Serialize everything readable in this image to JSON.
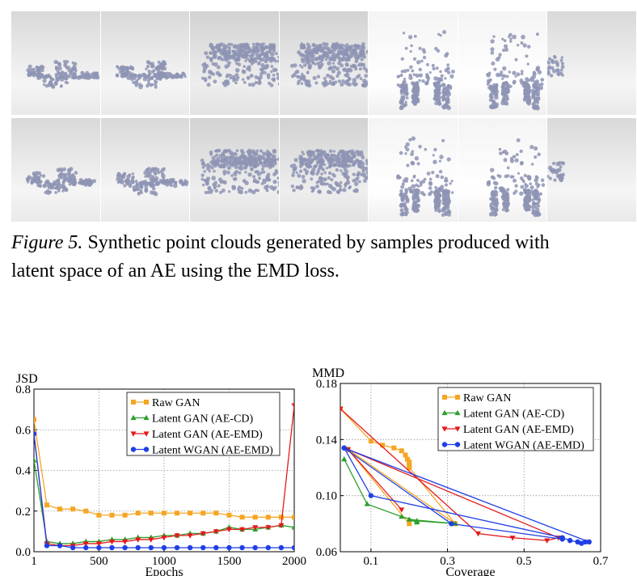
{
  "caption": {
    "figure_label": "Figure 5.",
    "line1": " Synthetic point clouds generated by samples produced with",
    "line2": "latent space of an AE using the EMD loss."
  },
  "renders": {
    "row1": [
      "airplane",
      "airplane",
      "car",
      "car",
      "chair",
      "chair",
      "partial"
    ],
    "row2": [
      "airplane",
      "airplane",
      "car",
      "car",
      "chair",
      "chair",
      "partial"
    ]
  },
  "colors": {
    "raw_gan": "#f5a623",
    "latent_gan_cd": "#2ca02c",
    "latent_gan_emd": "#e31a1c",
    "latent_wgan_emd": "#1f3fe6",
    "points": "#8e94b4"
  },
  "chart_data": [
    {
      "type": "line",
      "ylabel": "JSD",
      "xlabel": "Epochs",
      "xlim": [
        1,
        2000
      ],
      "ylim": [
        0.0,
        0.8
      ],
      "xticks": [
        1,
        500,
        1000,
        1500,
        2000
      ],
      "xtick_labels": [
        "1",
        "500",
        "1000",
        "1500",
        "2000"
      ],
      "yticks": [
        0.0,
        0.2,
        0.4,
        0.6,
        0.8
      ],
      "ytick_labels": [
        "0.0",
        "0.2",
        "0.4",
        "0.6",
        "0.8"
      ],
      "grid": true,
      "legend": "top-right",
      "series": [
        {
          "name": "Raw GAN",
          "marker": "square",
          "color": "#f5a623",
          "x": [
            1,
            100,
            200,
            300,
            400,
            500,
            600,
            700,
            800,
            900,
            1000,
            1100,
            1200,
            1300,
            1400,
            1500,
            1600,
            1700,
            1800,
            1900,
            2000
          ],
          "y": [
            0.65,
            0.23,
            0.21,
            0.21,
            0.2,
            0.18,
            0.18,
            0.18,
            0.19,
            0.19,
            0.19,
            0.19,
            0.19,
            0.19,
            0.19,
            0.18,
            0.17,
            0.17,
            0.17,
            0.17,
            0.17
          ]
        },
        {
          "name": "Latent GAN (AE-CD)",
          "marker": "triangle-up",
          "color": "#2ca02c",
          "x": [
            1,
            100,
            200,
            300,
            400,
            500,
            600,
            700,
            800,
            900,
            1000,
            1100,
            1200,
            1300,
            1400,
            1500,
            1600,
            1700,
            1800,
            1900,
            2000
          ],
          "y": [
            0.45,
            0.05,
            0.04,
            0.04,
            0.05,
            0.05,
            0.06,
            0.06,
            0.07,
            0.07,
            0.08,
            0.08,
            0.09,
            0.09,
            0.1,
            0.12,
            0.11,
            0.11,
            0.12,
            0.13,
            0.12
          ]
        },
        {
          "name": "Latent GAN (AE-EMD)",
          "marker": "triangle-down",
          "color": "#e31a1c",
          "x": [
            1,
            100,
            200,
            300,
            400,
            500,
            600,
            700,
            800,
            900,
            1000,
            1100,
            1200,
            1300,
            1400,
            1500,
            1600,
            1700,
            1800,
            1900,
            2000
          ],
          "y": [
            0.58,
            0.04,
            0.03,
            0.03,
            0.04,
            0.04,
            0.05,
            0.05,
            0.06,
            0.06,
            0.07,
            0.08,
            0.08,
            0.09,
            0.1,
            0.11,
            0.11,
            0.12,
            0.12,
            0.13,
            0.72
          ]
        },
        {
          "name": "Latent WGAN (AE-EMD)",
          "marker": "circle",
          "color": "#1f3fe6",
          "x": [
            1,
            100,
            200,
            300,
            400,
            500,
            600,
            700,
            800,
            900,
            1000,
            1100,
            1200,
            1300,
            1400,
            1500,
            1600,
            1700,
            1800,
            1900,
            2000
          ],
          "y": [
            0.58,
            0.03,
            0.03,
            0.02,
            0.02,
            0.02,
            0.02,
            0.02,
            0.02,
            0.02,
            0.02,
            0.02,
            0.02,
            0.02,
            0.02,
            0.02,
            0.02,
            0.02,
            0.02,
            0.02,
            0.02
          ]
        }
      ]
    },
    {
      "type": "line",
      "ylabel": "MMD",
      "xlabel": "Coverage",
      "xlim": [
        0.02,
        0.7
      ],
      "ylim": [
        0.06,
        0.18
      ],
      "xticks": [
        0.1,
        0.3,
        0.5,
        0.7
      ],
      "xtick_labels": [
        "0.1",
        "0.3",
        "0.5",
        "0.7"
      ],
      "yticks": [
        0.06,
        0.1,
        0.14,
        0.18
      ],
      "ytick_labels": [
        "0.06",
        "0.10",
        "0.14",
        "0.18"
      ],
      "grid": true,
      "legend": "top-right",
      "series": [
        {
          "name": "Raw GAN",
          "marker": "square",
          "color": "#f5a623",
          "x": [
            0.02,
            0.1,
            0.13,
            0.16,
            0.18,
            0.19,
            0.195,
            0.2,
            0.2,
            0.2,
            0.2,
            0.32,
            0.04,
            0.2
          ],
          "y": [
            0.162,
            0.139,
            0.136,
            0.134,
            0.132,
            0.129,
            0.126,
            0.124,
            0.122,
            0.121,
            0.12,
            0.08,
            0.133,
            0.08
          ]
        },
        {
          "name": "Latent GAN (AE-CD)",
          "marker": "triangle-up",
          "color": "#2ca02c",
          "x": [
            0.03,
            0.09,
            0.18,
            0.22,
            0.32,
            0.2,
            0.22
          ],
          "y": [
            0.126,
            0.094,
            0.085,
            0.082,
            0.08,
            0.083,
            0.081
          ]
        },
        {
          "name": "Latent GAN (AE-EMD)",
          "marker": "triangle-down",
          "color": "#e31a1c",
          "x": [
            0.02,
            0.38,
            0.47,
            0.56,
            0.59,
            0.04,
            0.18
          ],
          "y": [
            0.162,
            0.073,
            0.07,
            0.068,
            0.07,
            0.133,
            0.09
          ]
        },
        {
          "name": "Latent WGAN (AE-EMD)",
          "marker": "circle",
          "color": "#1f3fe6",
          "x": [
            0.03,
            0.1,
            0.6,
            0.62,
            0.64,
            0.65,
            0.66,
            0.67,
            0.03,
            0.31,
            0.6
          ],
          "y": [
            0.134,
            0.1,
            0.07,
            0.068,
            0.067,
            0.066,
            0.067,
            0.067,
            0.134,
            0.08,
            0.069
          ]
        }
      ]
    }
  ]
}
